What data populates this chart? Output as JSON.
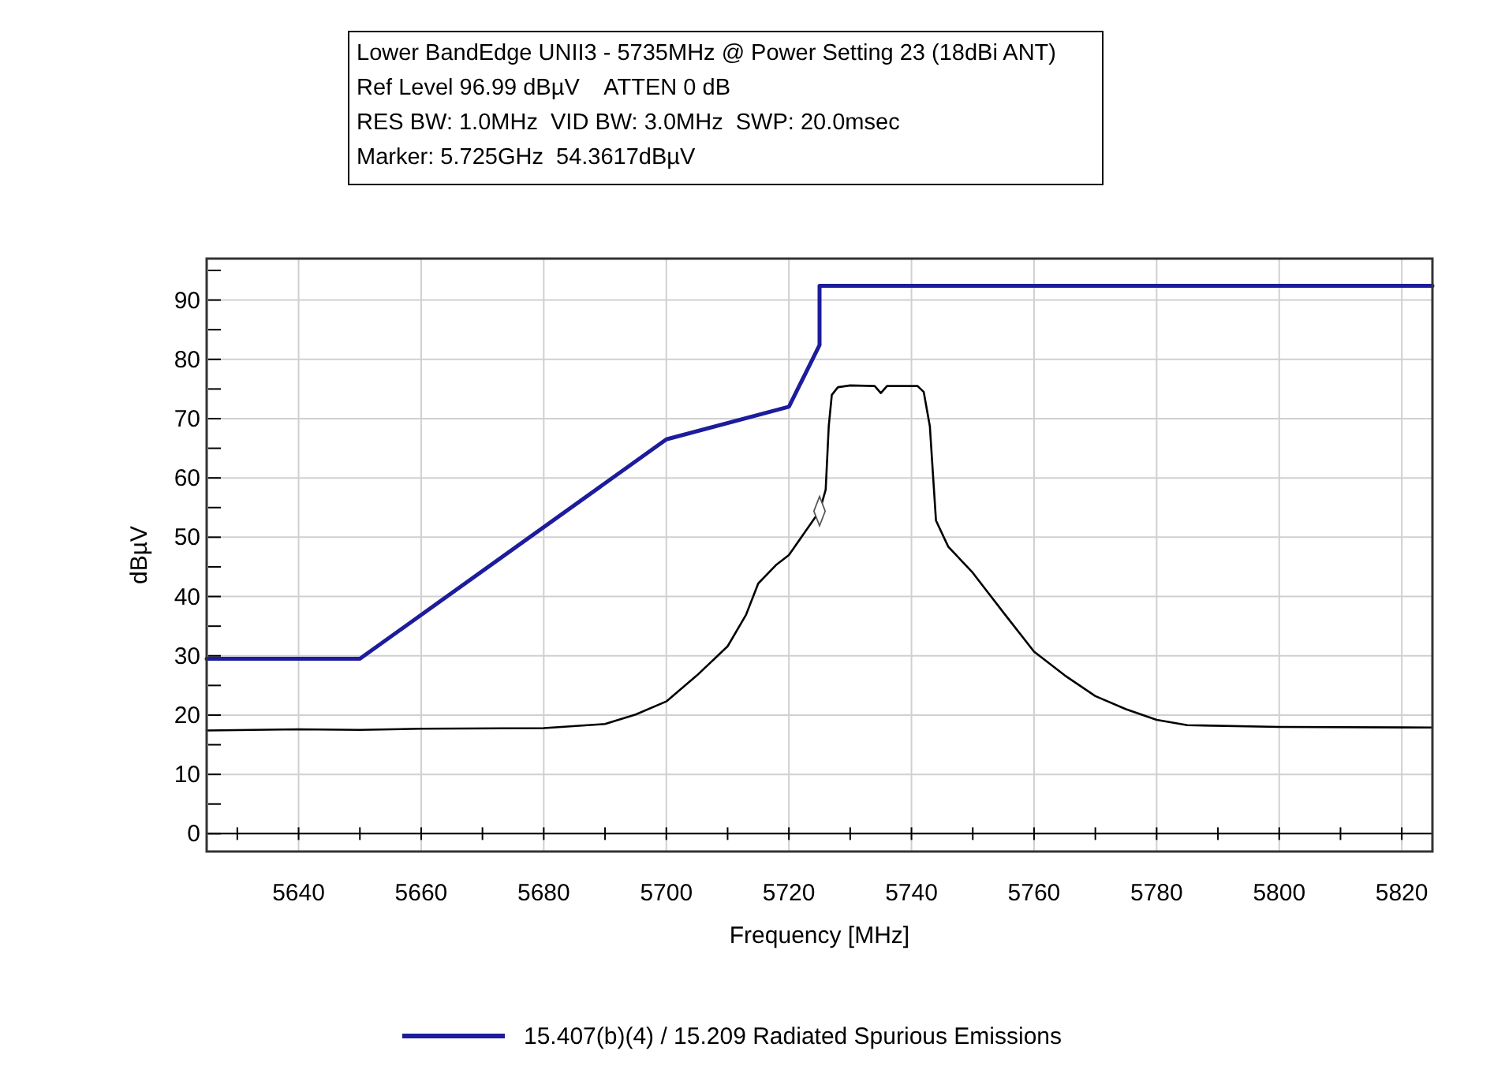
{
  "chart_data": {
    "type": "line",
    "title": "Lower BandEdge UNII3 - 5735MHz @ Power Setting 23 (18dBi ANT)",
    "annotations": [
      "Ref Level 96.99 dBµV    ATTEN 0 dB",
      "RES BW: 1.0MHz  VID BW: 3.0MHz  SWP: 20.0msec",
      "Marker: 5.725GHz  54.3617dBµV"
    ],
    "xlabel": "Frequency [MHz]",
    "ylabel": "dBµV",
    "xlim": [
      5625,
      5825
    ],
    "ylim": [
      -3.01,
      96.99
    ],
    "xticks": [
      {
        "value": 5630,
        "label": null
      },
      5640,
      {
        "value": 5650,
        "label": null
      },
      5660,
      {
        "value": 5670,
        "label": null
      },
      5680,
      {
        "value": 5690,
        "label": null
      },
      5700,
      {
        "value": 5710,
        "label": null
      },
      5720,
      {
        "value": 5730,
        "label": null
      },
      5740,
      {
        "value": 5750,
        "label": null
      },
      5760,
      {
        "value": 5770,
        "label": null
      },
      5780,
      {
        "value": 5790,
        "label": null
      },
      5800,
      {
        "value": 5810,
        "label": null
      },
      5820
    ],
    "yticks": [
      0,
      {
        "value": 5,
        "label": null
      },
      10,
      {
        "value": 15,
        "label": null
      },
      20,
      {
        "value": 25,
        "label": null
      },
      30,
      {
        "value": 35,
        "label": null
      },
      40,
      {
        "value": 45,
        "label": null
      },
      50,
      {
        "value": 55,
        "label": null
      },
      60,
      {
        "value": 65,
        "label": null
      },
      70,
      {
        "value": 75,
        "label": null
      },
      80,
      {
        "value": 85,
        "label": null
      },
      90,
      {
        "value": 95,
        "label": null
      }
    ],
    "grid": true,
    "legend": "bottom",
    "marker": "none",
    "line_style": "solid",
    "series": [
      {
        "name": "15.407(b)(4) / 15.209 Radiated Spurious Emissions",
        "color": "#1c1c9c",
        "x": [
          5625,
          5650,
          5700,
          5720,
          5725,
          5725,
          5825
        ],
        "values": [
          29.5,
          29.5,
          66.5,
          72,
          82.4,
          92.4,
          92.4
        ]
      },
      {
        "color": "#000000",
        "x": [
          5625,
          5640,
          5650,
          5660,
          5680,
          5690,
          5695,
          5700,
          5705,
          5710,
          5713,
          5715,
          5718,
          5720,
          5725,
          5726,
          5726.5,
          5727,
          5728,
          5730,
          5734,
          5735,
          5736,
          5741,
          5742,
          5743,
          5743.5,
          5744,
          5746,
          5750,
          5755,
          5760,
          5765,
          5770,
          5775,
          5780,
          5785,
          5800,
          5825
        ],
        "values": [
          17.4,
          17.6,
          17.5,
          17.7,
          17.8,
          18.5,
          20.1,
          22.3,
          26.7,
          31.6,
          36.9,
          42.2,
          45.4,
          47,
          54.4,
          58,
          68.7,
          74,
          75.3,
          75.6,
          75.5,
          74.3,
          75.5,
          75.5,
          74.5,
          68.7,
          60.7,
          52.8,
          48.4,
          44,
          37.3,
          30.7,
          26.7,
          23.2,
          21,
          19.2,
          18.3,
          18,
          17.9
        ]
      },
      {
        "type": "scatter",
        "marker": "diamond",
        "color": "#555555",
        "x": [
          5725
        ],
        "values": [
          54.4
        ]
      }
    ]
  }
}
